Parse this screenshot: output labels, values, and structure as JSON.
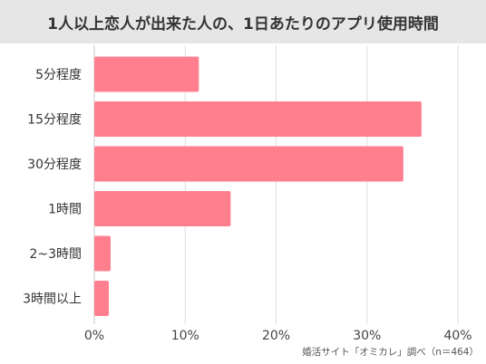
{
  "chart_data": {
    "type": "bar",
    "orientation": "horizontal",
    "title": "1人以上恋人が出来た人の、1日あたりのアプリ使用時間",
    "categories": [
      "5分程度",
      "15分程度",
      "30分程度",
      "1時間",
      "2~3時間",
      "3時間以上"
    ],
    "values": [
      11.5,
      36,
      34,
      15,
      1.8,
      1.6
    ],
    "xlim": [
      0,
      40
    ],
    "xticks": [
      "0%",
      "10%",
      "20%",
      "30%",
      "40%"
    ],
    "grid": true,
    "bar_color": "#ff7f8e",
    "source": "婚活サイト「オミカレ」調べ（n＝464）"
  }
}
